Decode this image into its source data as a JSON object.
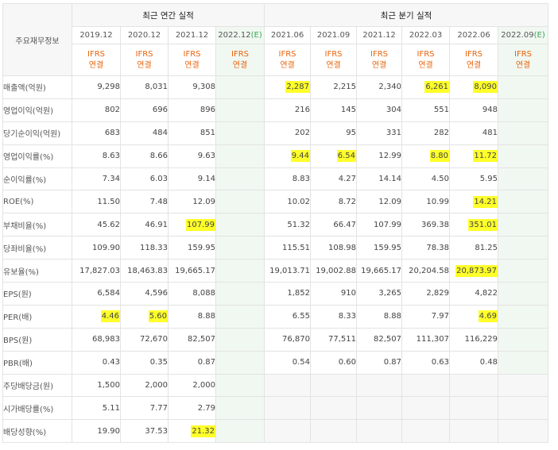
{
  "header": {
    "row_label": "주요재무정보",
    "annual_title": "최근 연간 실적",
    "quarterly_title": "최근 분기 실적",
    "annual_periods": [
      "2019.12",
      "2020.12",
      "2021.12",
      "2022.12"
    ],
    "quarter_periods": [
      "2021.06",
      "2021.09",
      "2021.12",
      "2022.03",
      "2022.06",
      "2022.09"
    ],
    "estimate_mark": "(E)",
    "ifrs": "IFRS",
    "consolidated": "연결"
  },
  "rows": [
    {
      "label": "매출액(억원)",
      "annual": [
        "9,298",
        "8,031",
        "9,308",
        ""
      ],
      "quarter": [
        "2,287",
        "2,215",
        "2,340",
        "6,261",
        "8,090",
        ""
      ]
    },
    {
      "label": "영업이익(억원)",
      "annual": [
        "802",
        "696",
        "896",
        ""
      ],
      "quarter": [
        "216",
        "145",
        "304",
        "551",
        "948",
        ""
      ]
    },
    {
      "label": "당기순이익(억원)",
      "annual": [
        "683",
        "484",
        "851",
        ""
      ],
      "quarter": [
        "202",
        "95",
        "331",
        "282",
        "481",
        ""
      ]
    },
    {
      "label": "영업이익률(%)",
      "annual": [
        "8.63",
        "8.66",
        "9.63",
        ""
      ],
      "quarter": [
        "9.44",
        "6.54",
        "12.99",
        "8.80",
        "11.72",
        ""
      ]
    },
    {
      "label": "순이익률(%)",
      "annual": [
        "7.34",
        "6.03",
        "9.14",
        ""
      ],
      "quarter": [
        "8.83",
        "4.27",
        "14.14",
        "4.50",
        "5.95",
        ""
      ]
    },
    {
      "label": "ROE(%)",
      "annual": [
        "11.50",
        "7.48",
        "12.09",
        ""
      ],
      "quarter": [
        "10.02",
        "8.72",
        "12.09",
        "10.99",
        "14.21",
        ""
      ]
    },
    {
      "label": "부채비율(%)",
      "annual": [
        "45.62",
        "46.91",
        "107.99",
        ""
      ],
      "quarter": [
        "51.32",
        "66.47",
        "107.99",
        "369.38",
        "351.01",
        ""
      ]
    },
    {
      "label": "당좌비율(%)",
      "annual": [
        "109.90",
        "118.33",
        "159.95",
        ""
      ],
      "quarter": [
        "115.51",
        "108.98",
        "159.95",
        "78.38",
        "81.25",
        ""
      ]
    },
    {
      "label": "유보율(%)",
      "annual": [
        "17,827.03",
        "18,463.83",
        "19,665.17",
        ""
      ],
      "quarter": [
        "19,013.71",
        "19,002.88",
        "19,665.17",
        "20,204.58",
        "20,873.97",
        ""
      ]
    },
    {
      "label": "EPS(원)",
      "annual": [
        "6,584",
        "4,596",
        "8,088",
        ""
      ],
      "quarter": [
        "1,852",
        "910",
        "3,265",
        "2,829",
        "4,822",
        ""
      ]
    },
    {
      "label": "PER(배)",
      "annual": [
        "4.46",
        "5.60",
        "8.88",
        ""
      ],
      "quarter": [
        "6.55",
        "8.33",
        "8.88",
        "7.97",
        "4.69",
        ""
      ]
    },
    {
      "label": "BPS(원)",
      "annual": [
        "68,983",
        "72,670",
        "82,507",
        ""
      ],
      "quarter": [
        "76,870",
        "77,511",
        "82,507",
        "111,307",
        "116,229",
        ""
      ]
    },
    {
      "label": "PBR(배)",
      "annual": [
        "0.43",
        "0.35",
        "0.87",
        ""
      ],
      "quarter": [
        "0.54",
        "0.60",
        "0.87",
        "0.63",
        "0.48",
        ""
      ]
    },
    {
      "label": "주당배당금(원)",
      "annual": [
        "1,500",
        "2,000",
        "2,000",
        ""
      ],
      "quarter": [
        "",
        "",
        "",
        "",
        "",
        ""
      ]
    },
    {
      "label": "시가배당률(%)",
      "annual": [
        "5.11",
        "7.77",
        "2.79",
        ""
      ],
      "quarter": [
        "",
        "",
        "",
        "",
        "",
        ""
      ]
    },
    {
      "label": "배당성향(%)",
      "annual": [
        "19.90",
        "37.53",
        "21.32",
        ""
      ],
      "quarter": [
        "",
        "",
        "",
        "",
        "",
        ""
      ]
    }
  ],
  "highlights": [
    {
      "row": 0,
      "group": "quarter",
      "col": 0
    },
    {
      "row": 0,
      "group": "quarter",
      "col": 3
    },
    {
      "row": 0,
      "group": "quarter",
      "col": 4
    },
    {
      "row": 3,
      "group": "quarter",
      "col": 0
    },
    {
      "row": 3,
      "group": "quarter",
      "col": 1
    },
    {
      "row": 3,
      "group": "quarter",
      "col": 3
    },
    {
      "row": 3,
      "group": "quarter",
      "col": 4
    },
    {
      "row": 5,
      "group": "quarter",
      "col": 4
    },
    {
      "row": 6,
      "group": "annual",
      "col": 2
    },
    {
      "row": 6,
      "group": "quarter",
      "col": 4
    },
    {
      "row": 8,
      "group": "quarter",
      "col": 4
    },
    {
      "row": 10,
      "group": "annual",
      "col": 0
    },
    {
      "row": 10,
      "group": "annual",
      "col": 1
    },
    {
      "row": 10,
      "group": "quarter",
      "col": 4
    },
    {
      "row": 15,
      "group": "annual",
      "col": 2
    }
  ],
  "colors": {
    "highlight": "#ffff2a",
    "ifrs": "#e8640c",
    "estimate": "#3aa657"
  }
}
